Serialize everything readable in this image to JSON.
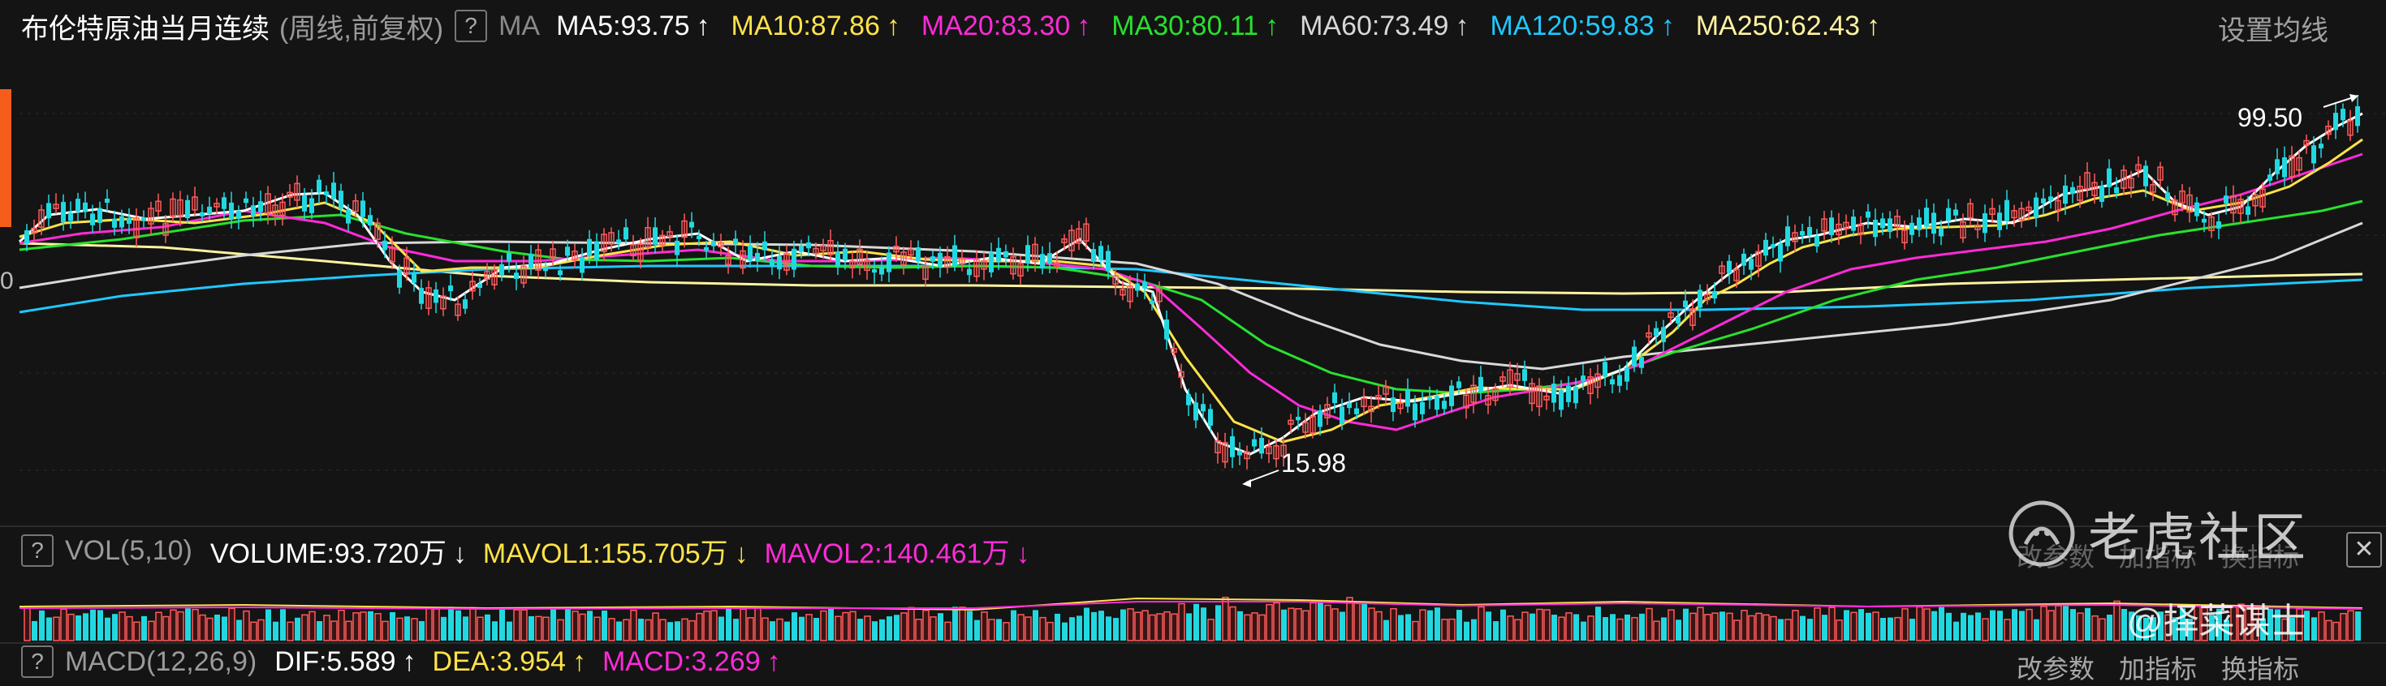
{
  "header": {
    "title": "布伦特原油当月连续",
    "subtitle": "(周线,前复权)",
    "help": "?",
    "ma_label": "MA",
    "ma_items": [
      {
        "label": "MA5:93.75",
        "arrow": "↑",
        "color": "#ffffff"
      },
      {
        "label": "MA10:87.86",
        "arrow": "↑",
        "color": "#ffe34a"
      },
      {
        "label": "MA20:83.30",
        "arrow": "↑",
        "color": "#ff2bd8"
      },
      {
        "label": "MA30:80.11",
        "arrow": "↑",
        "color": "#29e02f"
      },
      {
        "label": "MA60:73.49",
        "arrow": "↑",
        "color": "#d8d8d8"
      },
      {
        "label": "MA120:59.83",
        "arrow": "↑",
        "color": "#20c8ff"
      },
      {
        "label": "MA250:62.43",
        "arrow": "↑",
        "color": "#fff3a0"
      }
    ],
    "settings": "设置均线"
  },
  "price_chart": {
    "high_label": "99.50",
    "low_label": "15.98",
    "left_axis_label": "0",
    "colors": {
      "up": "#ff5b5b",
      "down": "#22d8e0"
    }
  },
  "volume": {
    "help": "?",
    "name": "VOL(5,10)",
    "items": [
      {
        "label": "VOLUME:93.720万",
        "arrow": "↓",
        "color": "#ffffff"
      },
      {
        "label": "MAVOL1:155.705万",
        "arrow": "↓",
        "color": "#ffe34a"
      },
      {
        "label": "MAVOL2:140.461万",
        "arrow": "↓",
        "color": "#ff2bd8"
      }
    ],
    "links": [
      "改参数",
      "加指标",
      "换指标"
    ]
  },
  "macd": {
    "help": "?",
    "name": "MACD(12,26,9)",
    "items": [
      {
        "label": "DIF:5.589",
        "arrow": "↑",
        "color": "#ffffff"
      },
      {
        "label": "DEA:3.954",
        "arrow": "↑",
        "color": "#ffe34a"
      },
      {
        "label": "MACD:3.269",
        "arrow": "↑",
        "color": "#ff2bd8"
      }
    ],
    "links": [
      "改参数",
      "加指标",
      "换指标"
    ]
  },
  "watermark": {
    "brand": "老虎社区",
    "author": "@择菜谋士"
  }
}
